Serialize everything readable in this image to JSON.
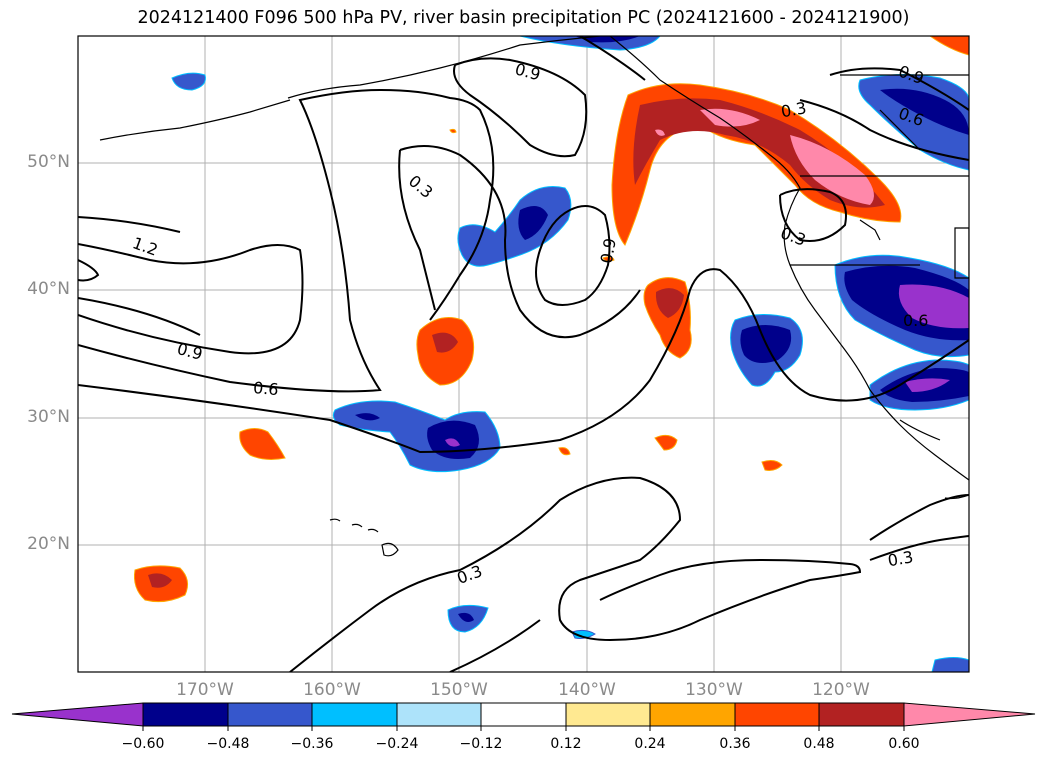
{
  "title": "2024121400 F096 500 hPa PV, river basin precipitation PC (2024121600 - 2024121900)",
  "lat_labels": [
    "50°N",
    "40°N",
    "30°N",
    "20°N"
  ],
  "lon_labels": [
    "170°W",
    "160°W",
    "150°W",
    "140°W",
    "130°W",
    "120°W"
  ],
  "contour_labels": [
    "0.9",
    "0.3",
    "1.2",
    "0.9",
    "0.6",
    "0.9",
    "0.3",
    "0.9",
    "0.6",
    "0.3",
    "0.6",
    "0.3",
    "0.3"
  ],
  "colorbar": {
    "ticks": [
      "−0.60",
      "−0.48",
      "−0.36",
      "−0.24",
      "−0.12",
      "0.12",
      "0.24",
      "0.36",
      "0.48",
      "0.60"
    ],
    "colors": [
      "#9932CC",
      "#00008B",
      "#3657CC",
      "#00BFFF",
      "#ADE3FA",
      "#FFFFFF",
      "#FFE991",
      "#FFA500",
      "#FF4500",
      "#B22222",
      "#FF88AA"
    ]
  }
}
